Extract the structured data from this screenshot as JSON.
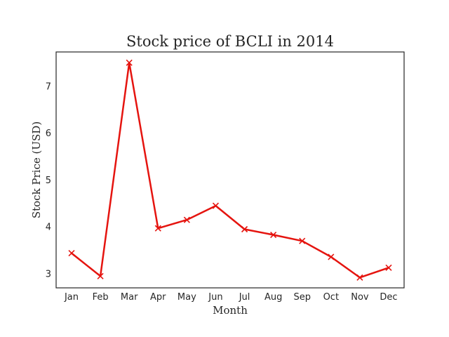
{
  "chart_data": {
    "type": "line",
    "title": "Stock price of BCLI in 2014",
    "xlabel": "Month",
    "ylabel": "Stock Price (USD)",
    "categories": [
      "Jan",
      "Feb",
      "Mar",
      "Apr",
      "May",
      "Jun",
      "Jul",
      "Aug",
      "Sep",
      "Oct",
      "Nov",
      "Dec"
    ],
    "series": [
      {
        "values": [
          3.44,
          2.95,
          7.5,
          3.97,
          4.15,
          4.45,
          3.95,
          3.83,
          3.7,
          3.36,
          2.92,
          3.13
        ],
        "color": "#e5140f",
        "marker": "x"
      }
    ],
    "yticks": [
      3,
      4,
      5,
      6,
      7
    ],
    "ylim": [
      2.7,
      7.73
    ],
    "grid": false,
    "legend": false
  }
}
